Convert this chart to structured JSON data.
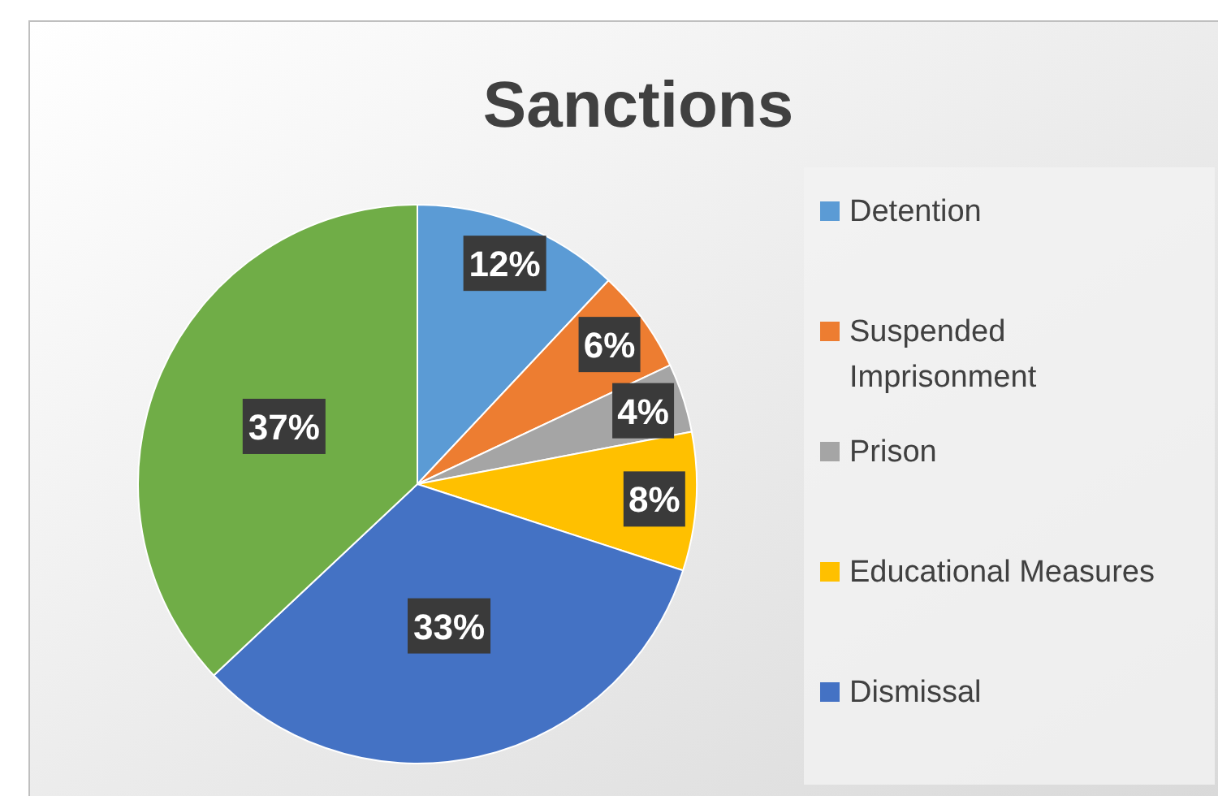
{
  "chart_data": {
    "type": "pie",
    "title": "Sanctions",
    "categories": [
      "Detention",
      "Suspended Imprisonment",
      "Prison",
      "Educational Measures",
      "Dismissal",
      null
    ],
    "values": [
      12,
      6,
      4,
      8,
      33,
      37
    ],
    "colors": [
      "#5b9bd5",
      "#ed7d31",
      "#a5a5a5",
      "#ffc000",
      "#4472c4",
      "#70ad47"
    ],
    "value_labels": [
      "12%",
      "6%",
      "4%",
      "8%",
      "33%",
      "37%"
    ],
    "legend": "right"
  }
}
